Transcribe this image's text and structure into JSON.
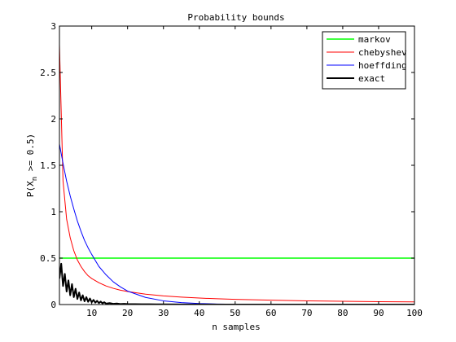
{
  "chart_data": {
    "type": "line",
    "title": "Probability bounds",
    "xlabel": "n samples",
    "ylabel_main": "P(X",
    "ylabel_sub": "n",
    "ylabel_rest": " >= 0.5)",
    "xlim": [
      1,
      100
    ],
    "ylim": [
      0,
      3
    ],
    "xticks": [
      10,
      20,
      30,
      40,
      50,
      60,
      70,
      80,
      90,
      100
    ],
    "yticks": [
      0,
      0.5,
      1,
      1.5,
      2,
      2.5,
      3
    ],
    "xtick_labels": [
      "10",
      "20",
      "30",
      "40",
      "50",
      "60",
      "70",
      "80",
      "90",
      "100"
    ],
    "ytick_labels": [
      "0",
      "0.5",
      "1",
      "1.5",
      "2",
      "2.5",
      "3"
    ],
    "grid": false,
    "legend_position": "top-right",
    "series": [
      {
        "name": "markov",
        "color": "#00ff00",
        "stroke_width": 1.5,
        "x": [
          1,
          100
        ],
        "y": [
          0.5,
          0.5
        ]
      },
      {
        "name": "chebyshev",
        "color": "#ff0000",
        "stroke_width": 1,
        "x": [
          1,
          2,
          3,
          4,
          5,
          6,
          7,
          8,
          9,
          10,
          12,
          14,
          16,
          18,
          20,
          25,
          30,
          35,
          40,
          45,
          50,
          60,
          70,
          80,
          90,
          100
        ],
        "y": [
          2.8,
          1.33,
          0.92,
          0.72,
          0.58,
          0.48,
          0.41,
          0.355,
          0.31,
          0.28,
          0.235,
          0.2,
          0.175,
          0.155,
          0.14,
          0.112,
          0.093,
          0.08,
          0.07,
          0.062,
          0.056,
          0.047,
          0.04,
          0.035,
          0.031,
          0.028
        ]
      },
      {
        "name": "hoeffding",
        "color": "#0000ff",
        "stroke_width": 1,
        "x": [
          1,
          2,
          3,
          4,
          5,
          6,
          7,
          8,
          9,
          10,
          12,
          14,
          16,
          18,
          20,
          25,
          30,
          35,
          40,
          45,
          50,
          60,
          70,
          80,
          90,
          100
        ],
        "y": [
          1.73,
          1.52,
          1.33,
          1.17,
          1.03,
          0.9,
          0.79,
          0.69,
          0.61,
          0.54,
          0.41,
          0.32,
          0.245,
          0.19,
          0.145,
          0.077,
          0.04,
          0.021,
          0.011,
          0.006,
          0.003,
          0.001,
          0.0,
          0.0,
          0.0,
          0.0
        ]
      },
      {
        "name": "exact",
        "color": "#000000",
        "stroke_width": 2,
        "x": [
          1,
          1.5,
          2,
          2.5,
          3,
          3.5,
          4,
          4.5,
          5,
          5.5,
          6,
          6.5,
          7,
          7.5,
          8,
          8.5,
          9,
          9.5,
          10,
          10.5,
          11,
          11.5,
          12,
          12.5,
          13,
          13.5,
          14,
          15,
          16,
          17,
          18,
          19,
          20,
          22,
          24,
          26,
          28,
          30,
          35,
          40,
          45,
          50,
          60,
          70,
          80,
          90,
          100
        ],
        "y": [
          0.28,
          0.44,
          0.2,
          0.33,
          0.14,
          0.26,
          0.1,
          0.22,
          0.08,
          0.17,
          0.06,
          0.13,
          0.045,
          0.1,
          0.035,
          0.08,
          0.03,
          0.065,
          0.025,
          0.05,
          0.02,
          0.04,
          0.016,
          0.032,
          0.013,
          0.025,
          0.01,
          0.015,
          0.008,
          0.011,
          0.006,
          0.008,
          0.005,
          0.004,
          0.003,
          0.003,
          0.002,
          0.002,
          0.001,
          0.001,
          0.0,
          0.0,
          0.0,
          0.0,
          0.0,
          0.0,
          0.0
        ]
      }
    ]
  }
}
